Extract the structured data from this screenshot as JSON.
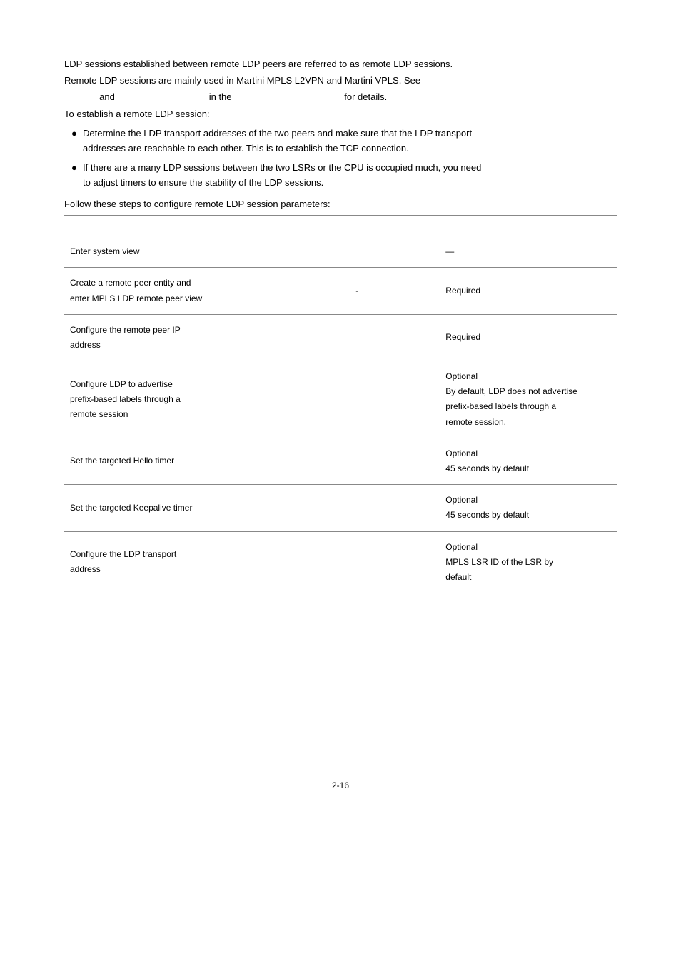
{
  "intro": {
    "p1_line1": "LDP  sessions  established  between  remote  LDP  peers  are  referred  to  as  remote  LDP  sessions.",
    "p1_line2": "Remote LDP sessions are mainly used in Martini MPLS L2VPN and Martini VPLS. See",
    "p1_line3_a": "and",
    "p1_line3_b": "in the",
    "p1_line3_c": "for details.",
    "p2": "To establish a remote LDP session:"
  },
  "bullets": [
    {
      "l1": "Determine the LDP transport addresses of the two peers and make sure that the LDP transport",
      "l2": "addresses are reachable to each other. This is to establish the TCP connection."
    },
    {
      "l1": "If there are a many LDP sessions between the two LSRs or the CPU is occupied much, you need",
      "l2": "to adjust timers to ensure the stability of the LDP sessions."
    }
  ],
  "table_intro": "Follow these steps to configure remote LDP session parameters:",
  "rows": [
    {
      "c1": [
        "Enter system view"
      ],
      "c2": "",
      "c3": [
        "—"
      ]
    },
    {
      "c1": [
        "Create a remote peer entity and",
        "enter MPLS LDP remote peer view"
      ],
      "c2": "-",
      "c3": [
        "Required"
      ]
    },
    {
      "c1": [
        "Configure the remote peer IP",
        "address"
      ],
      "c2": "",
      "c3": [
        "Required"
      ]
    },
    {
      "c1": [
        "Configure LDP to advertise",
        "prefix-based labels through a",
        "remote session"
      ],
      "c2": "",
      "c3": [
        "Optional",
        "By default, LDP does not advertise",
        "prefix-based labels through a",
        "remote session."
      ]
    },
    {
      "c1": [
        "Set the targeted Hello timer"
      ],
      "c2": "",
      "c3": [
        "Optional",
        "45 seconds by default"
      ]
    },
    {
      "c1": [
        "Set the targeted Keepalive timer"
      ],
      "c2": "",
      "c3": [
        "Optional",
        "45 seconds by default"
      ]
    },
    {
      "c1": [
        "Configure the LDP transport",
        "address"
      ],
      "c2": "",
      "c3": [
        "Optional",
        "MPLS LSR ID of the LSR by",
        "default"
      ]
    }
  ],
  "page_number": "2-16"
}
